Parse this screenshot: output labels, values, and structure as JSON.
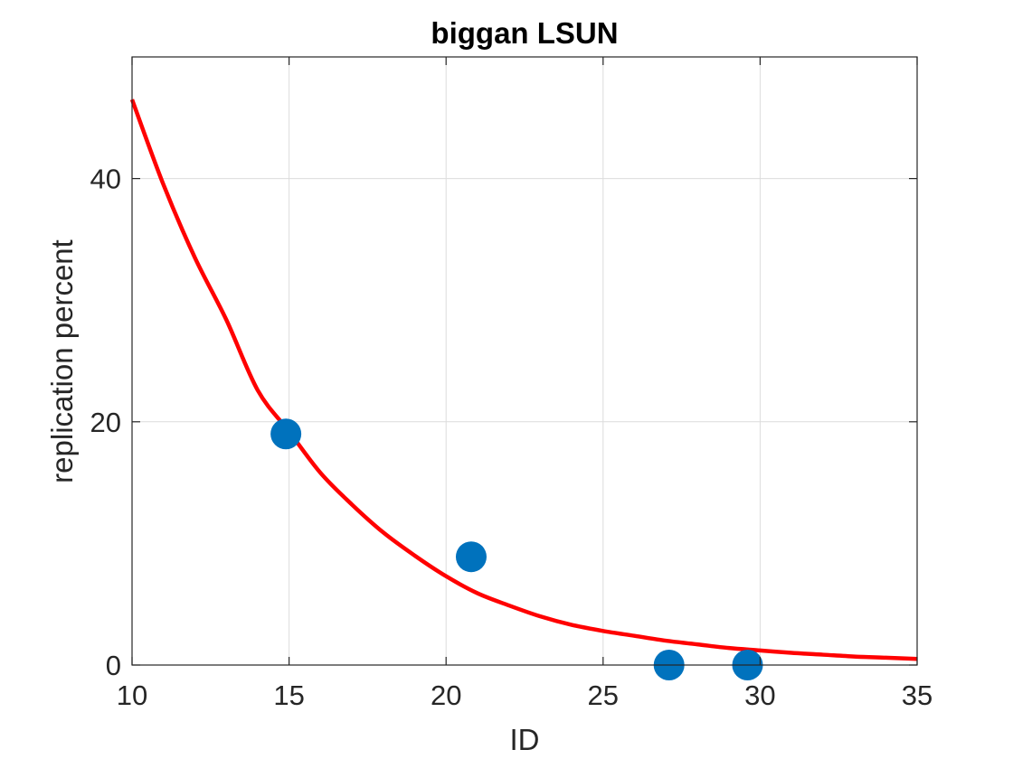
{
  "chart_data": {
    "type": "scatter",
    "title": "biggan LSUN",
    "xlabel": "ID",
    "ylabel": "replication percent",
    "xlim": [
      10,
      35
    ],
    "ylim": [
      0,
      50
    ],
    "xticks": [
      10,
      15,
      20,
      25,
      30,
      35
    ],
    "yticks": [
      0,
      20,
      40
    ],
    "grid": true,
    "series": [
      {
        "type": "scatter",
        "color": "#0072BD",
        "x": [
          14.9,
          20.8,
          27.1,
          29.6
        ],
        "y": [
          19.0,
          8.9,
          0.0,
          0.0
        ]
      },
      {
        "type": "line",
        "color": "#FF0000",
        "x": [
          10,
          11,
          12,
          13,
          14,
          15,
          16,
          17,
          18,
          19,
          20,
          21,
          22,
          23,
          24,
          25,
          26,
          27,
          28,
          29,
          30,
          31,
          32,
          33,
          34,
          35
        ],
        "y": [
          46.5,
          39.5,
          33.5,
          28.4,
          22.6,
          19.2,
          15.8,
          13.2,
          10.9,
          9.0,
          7.3,
          5.9,
          4.9,
          4.0,
          3.3,
          2.8,
          2.4,
          2.0,
          1.7,
          1.4,
          1.2,
          1.0,
          0.85,
          0.7,
          0.6,
          0.5
        ]
      }
    ]
  }
}
